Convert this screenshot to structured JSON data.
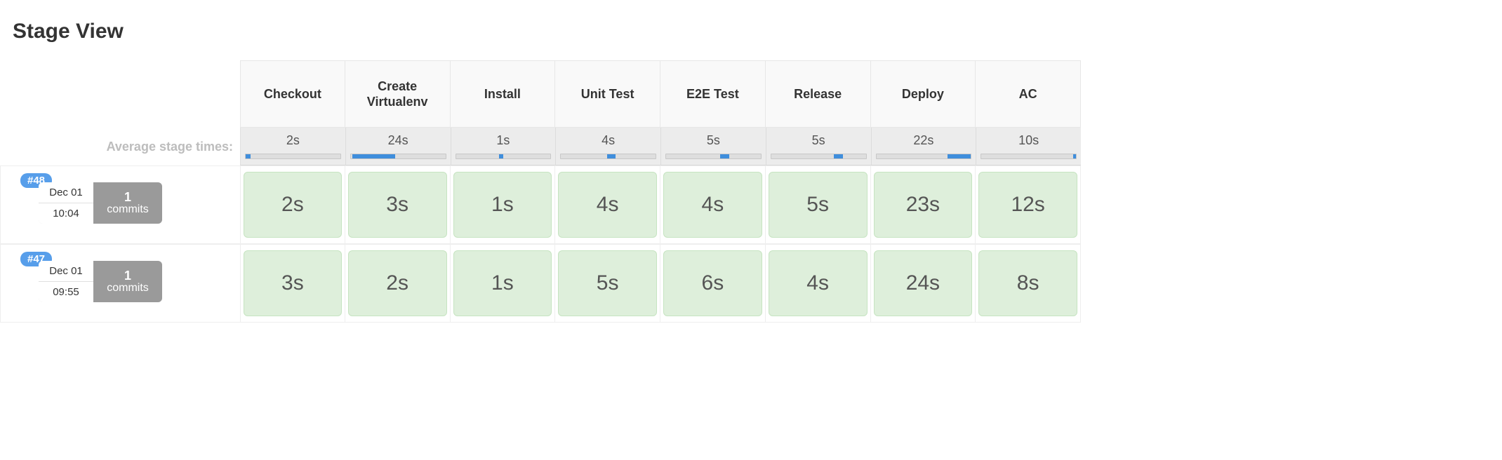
{
  "title": "Stage View",
  "avg_label": "Average stage times:",
  "stages": [
    {
      "name": "Checkout",
      "avg": "2s",
      "bar_left": 0.0,
      "bar_width": 0.05
    },
    {
      "name": "Create Virtualenv",
      "avg": "24s",
      "bar_left": 0.02,
      "bar_width": 0.45
    },
    {
      "name": "Install",
      "avg": "1s",
      "bar_left": 0.46,
      "bar_width": 0.04
    },
    {
      "name": "Unit Test",
      "avg": "4s",
      "bar_left": 0.49,
      "bar_width": 0.09
    },
    {
      "name": "E2E Test",
      "avg": "5s",
      "bar_left": 0.57,
      "bar_width": 0.1
    },
    {
      "name": "Release",
      "avg": "5s",
      "bar_left": 0.66,
      "bar_width": 0.1
    },
    {
      "name": "Deploy",
      "avg": "22s",
      "bar_left": 0.75,
      "bar_width": 0.4
    },
    {
      "name": "AC",
      "avg": "10s",
      "bar_left": 0.97,
      "bar_width": 0.2
    }
  ],
  "builds": [
    {
      "id": "#48",
      "date": "Dec 01",
      "time": "10:04",
      "commits_count": "1",
      "commits_label": "commits",
      "cells": [
        {
          "text": "2s",
          "status": "success"
        },
        {
          "text": "3s",
          "status": "success"
        },
        {
          "text": "1s",
          "status": "success"
        },
        {
          "text": "4s",
          "status": "success"
        },
        {
          "text": "4s",
          "status": "success"
        },
        {
          "text": "5s",
          "status": "success"
        },
        {
          "text": "23s",
          "status": "success"
        },
        {
          "text": "12s",
          "status": "success"
        }
      ]
    },
    {
      "id": "#47",
      "date": "Dec 01",
      "time": "09:55",
      "commits_count": "1",
      "commits_label": "commits",
      "cells": [
        {
          "text": "3s",
          "status": "success"
        },
        {
          "text": "2s",
          "status": "success"
        },
        {
          "text": "1s",
          "status": "success"
        },
        {
          "text": "5s",
          "status": "success"
        },
        {
          "text": "6s",
          "status": "success"
        },
        {
          "text": "4s",
          "status": "success"
        },
        {
          "text": "24s",
          "status": "success"
        },
        {
          "text": "8s",
          "status": "success"
        }
      ]
    }
  ],
  "colors": {
    "success_bg": "#deefdb",
    "success_border": "#c6e4c1",
    "bar_fill": "#3f8edc",
    "badge_bg": "#579eea"
  }
}
